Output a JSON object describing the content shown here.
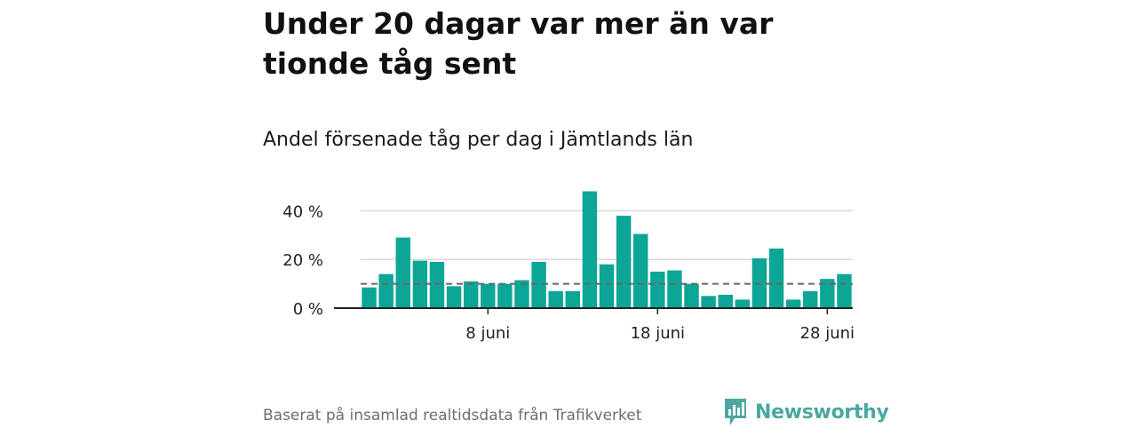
{
  "header": {
    "title": "Under 20 dagar var mer än var tionde tåg sent",
    "subtitle": "Andel försenade tåg per dag i Jämtlands län"
  },
  "footer": {
    "source": "Baserat på insamlad realtidsdata från Trafikverket",
    "brand": "Newsworthy"
  },
  "colors": {
    "bar": "#0ca697",
    "reference_line": "#666666",
    "grid": "#d9d9d9",
    "axis": "#222222",
    "brand": "#4aa89f"
  },
  "icons": {
    "brand_logo": "bar-chart-speech-bubble-icon"
  },
  "chart_data": {
    "type": "bar",
    "x_unit": "day of June",
    "x": [
      1,
      2,
      3,
      4,
      5,
      6,
      7,
      8,
      9,
      10,
      11,
      12,
      13,
      14,
      15,
      16,
      17,
      18,
      19,
      20,
      21,
      22,
      23,
      24,
      25,
      26,
      27,
      28,
      29
    ],
    "values": [
      8.5,
      14,
      29,
      19.5,
      19,
      9,
      11,
      10,
      10,
      11.5,
      19,
      7,
      7,
      48,
      18,
      38,
      30.5,
      15,
      15.5,
      10,
      5,
      5.5,
      3.5,
      20.5,
      24.5,
      3.5,
      7,
      12,
      14
    ],
    "reference_line": {
      "value": 10,
      "style": "dashed"
    },
    "ylim": [
      0,
      50
    ],
    "yticks": [
      {
        "value": 0,
        "label": "0 %"
      },
      {
        "value": 20,
        "label": "20 %"
      },
      {
        "value": 40,
        "label": "40 %"
      }
    ],
    "xticks": [
      {
        "value": 8,
        "label": "8 juni"
      },
      {
        "value": 18,
        "label": "18 juni"
      },
      {
        "value": 28,
        "label": "28 juni"
      }
    ],
    "grid": true
  }
}
